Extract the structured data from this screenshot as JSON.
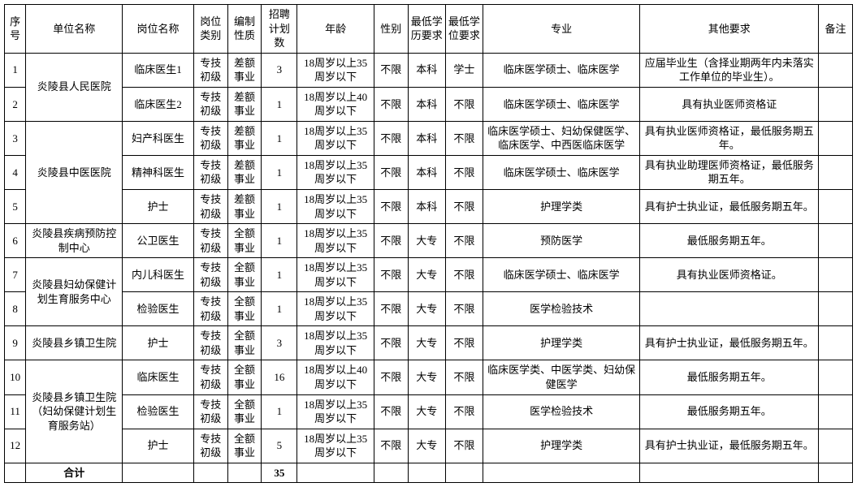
{
  "headers": {
    "seq": "序号",
    "unit": "单位名称",
    "position": "岗位名称",
    "category": "岗位类别",
    "bianzhi": "编制性质",
    "plan": "招聘计划数",
    "age": "年龄",
    "sex": "性别",
    "edu": "最低学历要求",
    "degree": "最低学位要求",
    "major": "专业",
    "other": "其他要求",
    "note": "备注"
  },
  "units": {
    "u1": "炎陵县人民医院",
    "u2": "炎陵县中医医院",
    "u3": "炎陵县疾病预防控制中心",
    "u4": "炎陵县妇幼保健计划生育服务中心",
    "u5": "炎陵县乡镇卫生院",
    "u6": "炎陵县乡镇卫生院（妇幼保健计划生育服务站）"
  },
  "common": {
    "cat": "专技初级",
    "bz_cha": "差额事业",
    "bz_quan": "全额事业",
    "age35": "18周岁以上35周岁以下",
    "age40": "18周岁以上40周岁以下",
    "sex": "不限",
    "edu_bk": "本科",
    "edu_dz": "大专",
    "deg_xs": "学士",
    "deg_bx": "不限"
  },
  "rows": {
    "r1": {
      "seq": "1",
      "pos": "临床医生1",
      "plan": "3",
      "major": "临床医学硕士、临床医学",
      "other": "应届毕业生（含择业期两年内未落实工作单位的毕业生）。"
    },
    "r2": {
      "seq": "2",
      "pos": "临床医生2",
      "plan": "1",
      "major": "临床医学硕士、临床医学",
      "other": "具有执业医师资格证"
    },
    "r3": {
      "seq": "3",
      "pos": "妇产科医生",
      "plan": "1",
      "major": "临床医学硕士、妇幼保健医学、临床医学、中西医临床医学",
      "other": "具有执业医师资格证，最低服务期五年。"
    },
    "r4": {
      "seq": "4",
      "pos": "精神科医生",
      "plan": "1",
      "major": "临床医学硕士、临床医学",
      "other": "具有执业助理医师资格证，最低服务期五年。"
    },
    "r5": {
      "seq": "5",
      "pos": "护士",
      "plan": "1",
      "major": "护理学类",
      "other": "具有护士执业证，最低服务期五年。"
    },
    "r6": {
      "seq": "6",
      "pos": "公卫医生",
      "plan": "1",
      "major": "预防医学",
      "other": "最低服务期五年。"
    },
    "r7": {
      "seq": "7",
      "pos": "内儿科医生",
      "plan": "1",
      "major": "临床医学硕士、临床医学",
      "other": "具有执业医师资格证。"
    },
    "r8": {
      "seq": "8",
      "pos": "检验医生",
      "plan": "1",
      "major": "医学检验技术",
      "other": ""
    },
    "r9": {
      "seq": "9",
      "pos": "护士",
      "plan": "3",
      "major": "护理学类",
      "other": "具有护士执业证，最低服务期五年。"
    },
    "r10": {
      "seq": "10",
      "pos": "临床医生",
      "plan": "16",
      "major": "临床医学类、中医学类、妇幼保健医学",
      "other": "最低服务期五年。"
    },
    "r11": {
      "seq": "11",
      "pos": "检验医生",
      "plan": "1",
      "major": "医学检验技术",
      "other": "最低服务期五年。"
    },
    "r12": {
      "seq": "12",
      "pos": "护士",
      "plan": "5",
      "major": "护理学类",
      "other": "具有护士执业证，最低服务期五年。"
    }
  },
  "total": {
    "label": "合计",
    "value": "35"
  }
}
